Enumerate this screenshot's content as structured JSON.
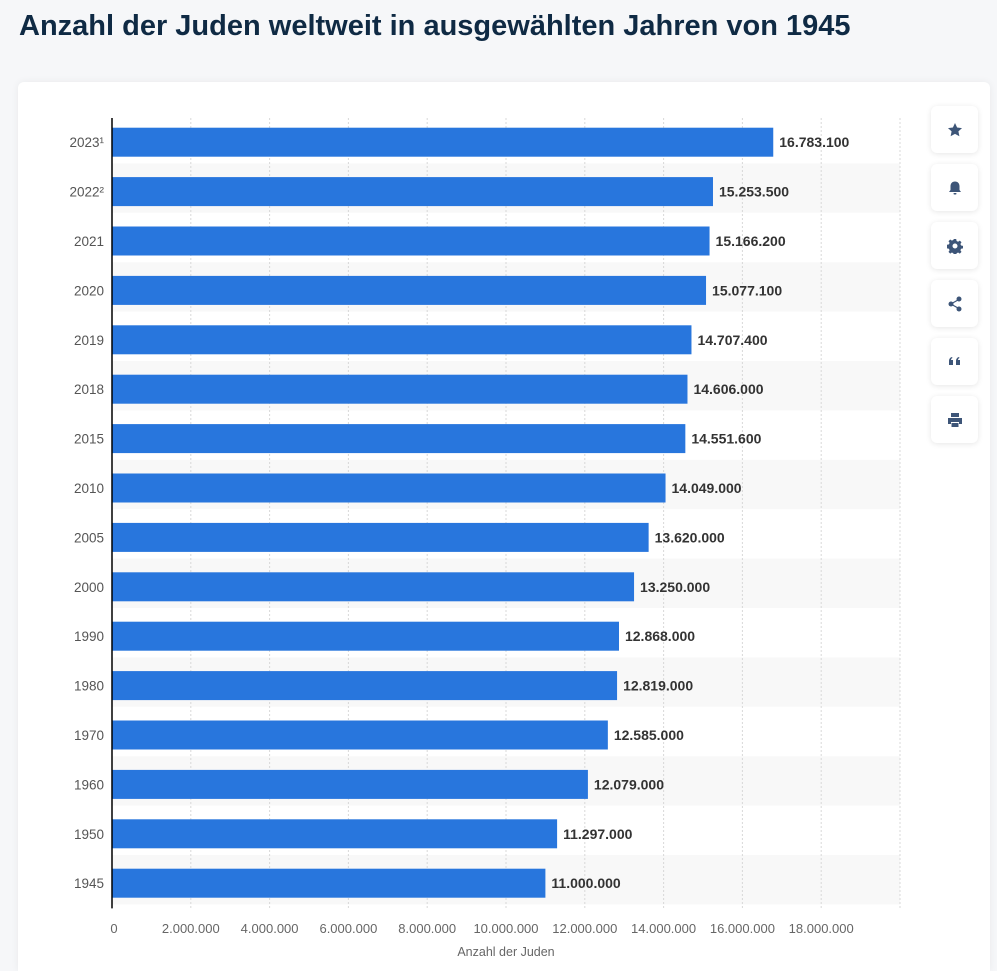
{
  "title": "Anzahl der Juden weltweit in ausgewählten Jahren von 1945",
  "chart_data": {
    "type": "bar",
    "orientation": "horizontal",
    "title": "Anzahl der Juden weltweit in ausgewählten Jahren von 1945",
    "xlabel": "Anzahl der Juden",
    "ylabel": "",
    "categories": [
      "2023¹",
      "2022²",
      "2021",
      "2020",
      "2019",
      "2018",
      "2015",
      "2010",
      "2005",
      "2000",
      "1990",
      "1980",
      "1970",
      "1960",
      "1950",
      "1945"
    ],
    "values": [
      16783100,
      15253500,
      15166200,
      15077100,
      14707400,
      14606000,
      14551600,
      14049000,
      13620000,
      13250000,
      12868000,
      12819000,
      12585000,
      12079000,
      11297000,
      11000000
    ],
    "value_labels": [
      "16.783.100",
      "15.253.500",
      "15.166.200",
      "15.077.100",
      "14.707.400",
      "14.606.000",
      "14.551.600",
      "14.049.000",
      "13.620.000",
      "13.250.000",
      "12.868.000",
      "12.819.000",
      "12.585.000",
      "12.079.000",
      "11.297.000",
      "11.000.000"
    ],
    "xlim": [
      0,
      20000000
    ],
    "x_ticks": [
      0,
      2000000,
      4000000,
      6000000,
      8000000,
      10000000,
      12000000,
      14000000,
      16000000,
      18000000
    ],
    "x_tick_labels": [
      "0",
      "2.000.000",
      "4.000.000",
      "6.000.000",
      "8.000.000",
      "10.000.000",
      "12.000.000",
      "14.000.000",
      "16.000.000",
      "18.000.000"
    ],
    "grid": true,
    "bar_color": "#2876dd"
  },
  "toolbar": [
    {
      "icon": "star-icon",
      "name": "favorite-button"
    },
    {
      "icon": "bell-icon",
      "name": "notification-button"
    },
    {
      "icon": "gear-icon",
      "name": "settings-button"
    },
    {
      "icon": "share-icon",
      "name": "share-button"
    },
    {
      "icon": "quote-icon",
      "name": "cite-button"
    },
    {
      "icon": "print-icon",
      "name": "print-button"
    }
  ]
}
